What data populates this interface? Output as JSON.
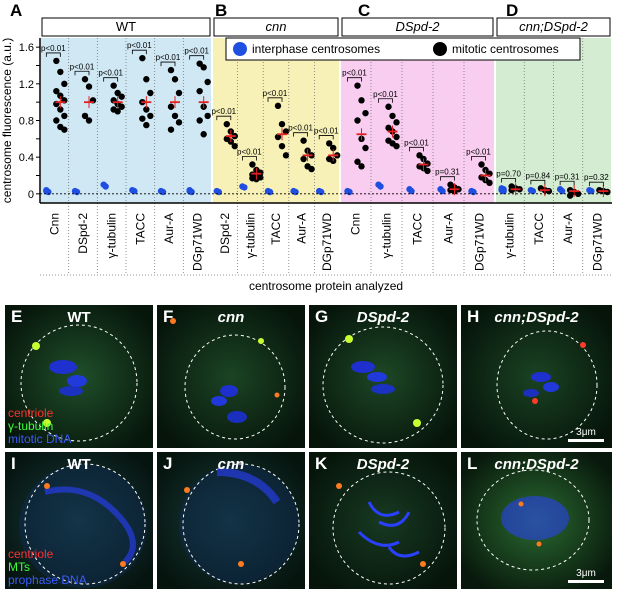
{
  "chart_data": {
    "type": "scatter",
    "ylabel": "centrosome fluorescence (a.u.)",
    "xlabel": "centrosome protein analyzed",
    "ylim": [
      -0.1,
      1.7
    ],
    "yticks": [
      "0",
      "0.2",
      "0.4",
      "0.6",
      "0.8",
      "1.0",
      "1.2",
      "1.4",
      "1.6"
    ],
    "series_legend": [
      {
        "name": "interphase centrosomes",
        "color": "#1f4fe0"
      },
      {
        "name": "mitotic centrosomes",
        "color": "#000000"
      }
    ],
    "groups": [
      {
        "letter": "A",
        "title": "WT",
        "italic": false,
        "color": "#cfe8f4",
        "categories": [
          {
            "label": "Cnn",
            "pvalue": "p<0.01",
            "mean": 1.0,
            "interphase": [
              0.03,
              0.02,
              0.04
            ],
            "mitotic": [
              1.45,
              1.33,
              1.2,
              1.12,
              1.07,
              1.02,
              0.98,
              0.92,
              0.85,
              0.8,
              0.73,
              0.7
            ]
          },
          {
            "label": "DSpd-2",
            "pvalue": "p<0.01",
            "mean": 1.0,
            "interphase": [
              0.03,
              0.02
            ],
            "mitotic": [
              1.25,
              1.17,
              1.02,
              0.85,
              0.8
            ]
          },
          {
            "label": "γ-tubulin",
            "pvalue": "p<0.01",
            "mean": 1.0,
            "interphase": [
              0.1,
              0.08
            ],
            "mitotic": [
              1.18,
              1.1,
              1.06,
              1.02,
              0.98,
              0.95,
              0.92,
              0.9
            ]
          },
          {
            "label": "TACC",
            "pvalue": "p<0.01",
            "mean": 1.0,
            "interphase": [
              0.04,
              0.03
            ],
            "mitotic": [
              1.48,
              1.25,
              1.1,
              1.0,
              0.92,
              0.85,
              0.82,
              0.75
            ]
          },
          {
            "label": "Aur-A",
            "pvalue": "p<0.01",
            "mean": 1.0,
            "interphase": [
              0.03,
              0.02
            ],
            "mitotic": [
              1.35,
              1.25,
              1.1,
              0.95,
              0.85,
              0.78,
              0.7
            ]
          },
          {
            "label": "DGp71WD",
            "pvalue": "p<0.01",
            "mean": 1.0,
            "interphase": [
              0.03,
              0.02,
              0.04
            ],
            "mitotic": [
              1.42,
              1.38,
              1.22,
              1.12,
              0.95,
              0.85,
              0.8,
              0.65
            ]
          }
        ]
      },
      {
        "letter": "B",
        "title": "cnn",
        "italic": true,
        "color": "#f7f1b8",
        "categories": [
          {
            "label": "DSpd-2",
            "pvalue": "p<0.01",
            "mean": 0.63,
            "interphase": [
              0.03,
              0.02
            ],
            "mitotic": [
              0.76,
              0.68,
              0.63,
              0.6,
              0.57,
              0.52
            ]
          },
          {
            "label": "γ-tubulin",
            "pvalue": "p<0.01",
            "mean": 0.22,
            "interphase": [
              0.08,
              0.07
            ],
            "mitotic": [
              0.32,
              0.26,
              0.23,
              0.21,
              0.19,
              0.18,
              0.17,
              0.16
            ]
          },
          {
            "label": "TACC",
            "pvalue": "p<0.01",
            "mean": 0.65,
            "interphase": [
              0.03,
              0.02
            ],
            "mitotic": [
              0.96,
              0.76,
              0.68,
              0.62,
              0.52,
              0.42
            ]
          },
          {
            "label": "Aur-A",
            "pvalue": "p<0.01",
            "mean": 0.42,
            "interphase": [
              0.03,
              0.02
            ],
            "mitotic": [
              0.58,
              0.47,
              0.42,
              0.38,
              0.3,
              0.27
            ]
          },
          {
            "label": "DGp71WD",
            "pvalue": "p<0.01",
            "mean": 0.42,
            "interphase": [
              0.03,
              0.02
            ],
            "mitotic": [
              0.55,
              0.5,
              0.42,
              0.38,
              0.36
            ]
          }
        ]
      },
      {
        "letter": "C",
        "title": "DSpd-2",
        "italic": true,
        "color": "#f8cdf0",
        "categories": [
          {
            "label": "Cnn",
            "pvalue": "p<0.01",
            "mean": 0.65,
            "interphase": [
              0.03,
              0.02
            ],
            "mitotic": [
              1.18,
              1.02,
              0.88,
              0.8,
              0.6,
              0.5,
              0.35,
              0.3
            ]
          },
          {
            "label": "γ-tubulin",
            "pvalue": "p<0.01",
            "mean": 0.68,
            "interphase": [
              0.1,
              0.08
            ],
            "mitotic": [
              0.95,
              0.85,
              0.78,
              0.72,
              0.68,
              0.62,
              0.58,
              0.55,
              0.52
            ]
          },
          {
            "label": "TACC",
            "pvalue": "p<0.01",
            "mean": 0.32,
            "interphase": [
              0.05,
              0.03
            ],
            "mitotic": [
              0.42,
              0.38,
              0.33,
              0.3,
              0.28,
              0.25
            ]
          },
          {
            "label": "Aur-A",
            "pvalue": "p=0.31",
            "mean": 0.05,
            "interphase": [
              0.05,
              0.03
            ],
            "mitotic": [
              0.1,
              0.07,
              0.05,
              0.04,
              0.03
            ]
          },
          {
            "label": "DGp71WD",
            "pvalue": "p<0.01",
            "mean": 0.2,
            "interphase": [
              0.03,
              0.02
            ],
            "mitotic": [
              0.32,
              0.26,
              0.22,
              0.18,
              0.15,
              0.12
            ]
          }
        ]
      },
      {
        "letter": "D",
        "title": "cnn;DSpd-2",
        "italic": true,
        "color": "#d4ecd2",
        "categories": [
          {
            "label": "γ-tubulin",
            "pvalue": "p=0.70",
            "mean": 0.05,
            "interphase": [
              0.06,
              0.05,
              0.04,
              0.03
            ],
            "mitotic": [
              0.08,
              0.06,
              0.05,
              0.04
            ]
          },
          {
            "label": "TACC",
            "pvalue": "p=0.84",
            "mean": 0.04,
            "interphase": [
              0.04,
              0.03
            ],
            "mitotic": [
              0.06,
              0.04,
              0.03
            ]
          },
          {
            "label": "Aur-A",
            "pvalue": "p=0.31",
            "mean": 0.03,
            "interphase": [
              0.05,
              0.03
            ],
            "mitotic": [
              0.04,
              0.02,
              0.0,
              -0.02
            ]
          },
          {
            "label": "DGp71WD",
            "pvalue": "p=0.32",
            "mean": 0.03,
            "interphase": [
              0.04,
              0.03
            ],
            "mitotic": [
              0.04,
              0.03,
              0.02
            ]
          }
        ]
      }
    ]
  },
  "micrographs": {
    "top_row": [
      {
        "letter": "E",
        "title": "WT",
        "italic": false
      },
      {
        "letter": "F",
        "title": "cnn",
        "italic": true
      },
      {
        "letter": "G",
        "title": "DSpd-2",
        "italic": true
      },
      {
        "letter": "H",
        "title": "cnn;DSpd-2",
        "italic": true
      }
    ],
    "bottom_row": [
      {
        "letter": "I",
        "title": "WT",
        "italic": false
      },
      {
        "letter": "J",
        "title": "cnn",
        "italic": true
      },
      {
        "letter": "K",
        "title": "DSpd-2",
        "italic": true
      },
      {
        "letter": "L",
        "title": "cnn;DSpd-2",
        "italic": true
      }
    ],
    "top_legend": [
      {
        "text": "centriole",
        "color": "#ff3030"
      },
      {
        "text": "γ-tubulin",
        "color": "#3cff3c"
      },
      {
        "text": "mitotic DNA",
        "color": "#3a5cff"
      }
    ],
    "bottom_legend": [
      {
        "text": "centriole",
        "color": "#ff3030"
      },
      {
        "text": "MTs",
        "color": "#3cff3c"
      },
      {
        "text": "prophase DNA",
        "color": "#3a5cff"
      }
    ],
    "scale_label": "3μm"
  }
}
